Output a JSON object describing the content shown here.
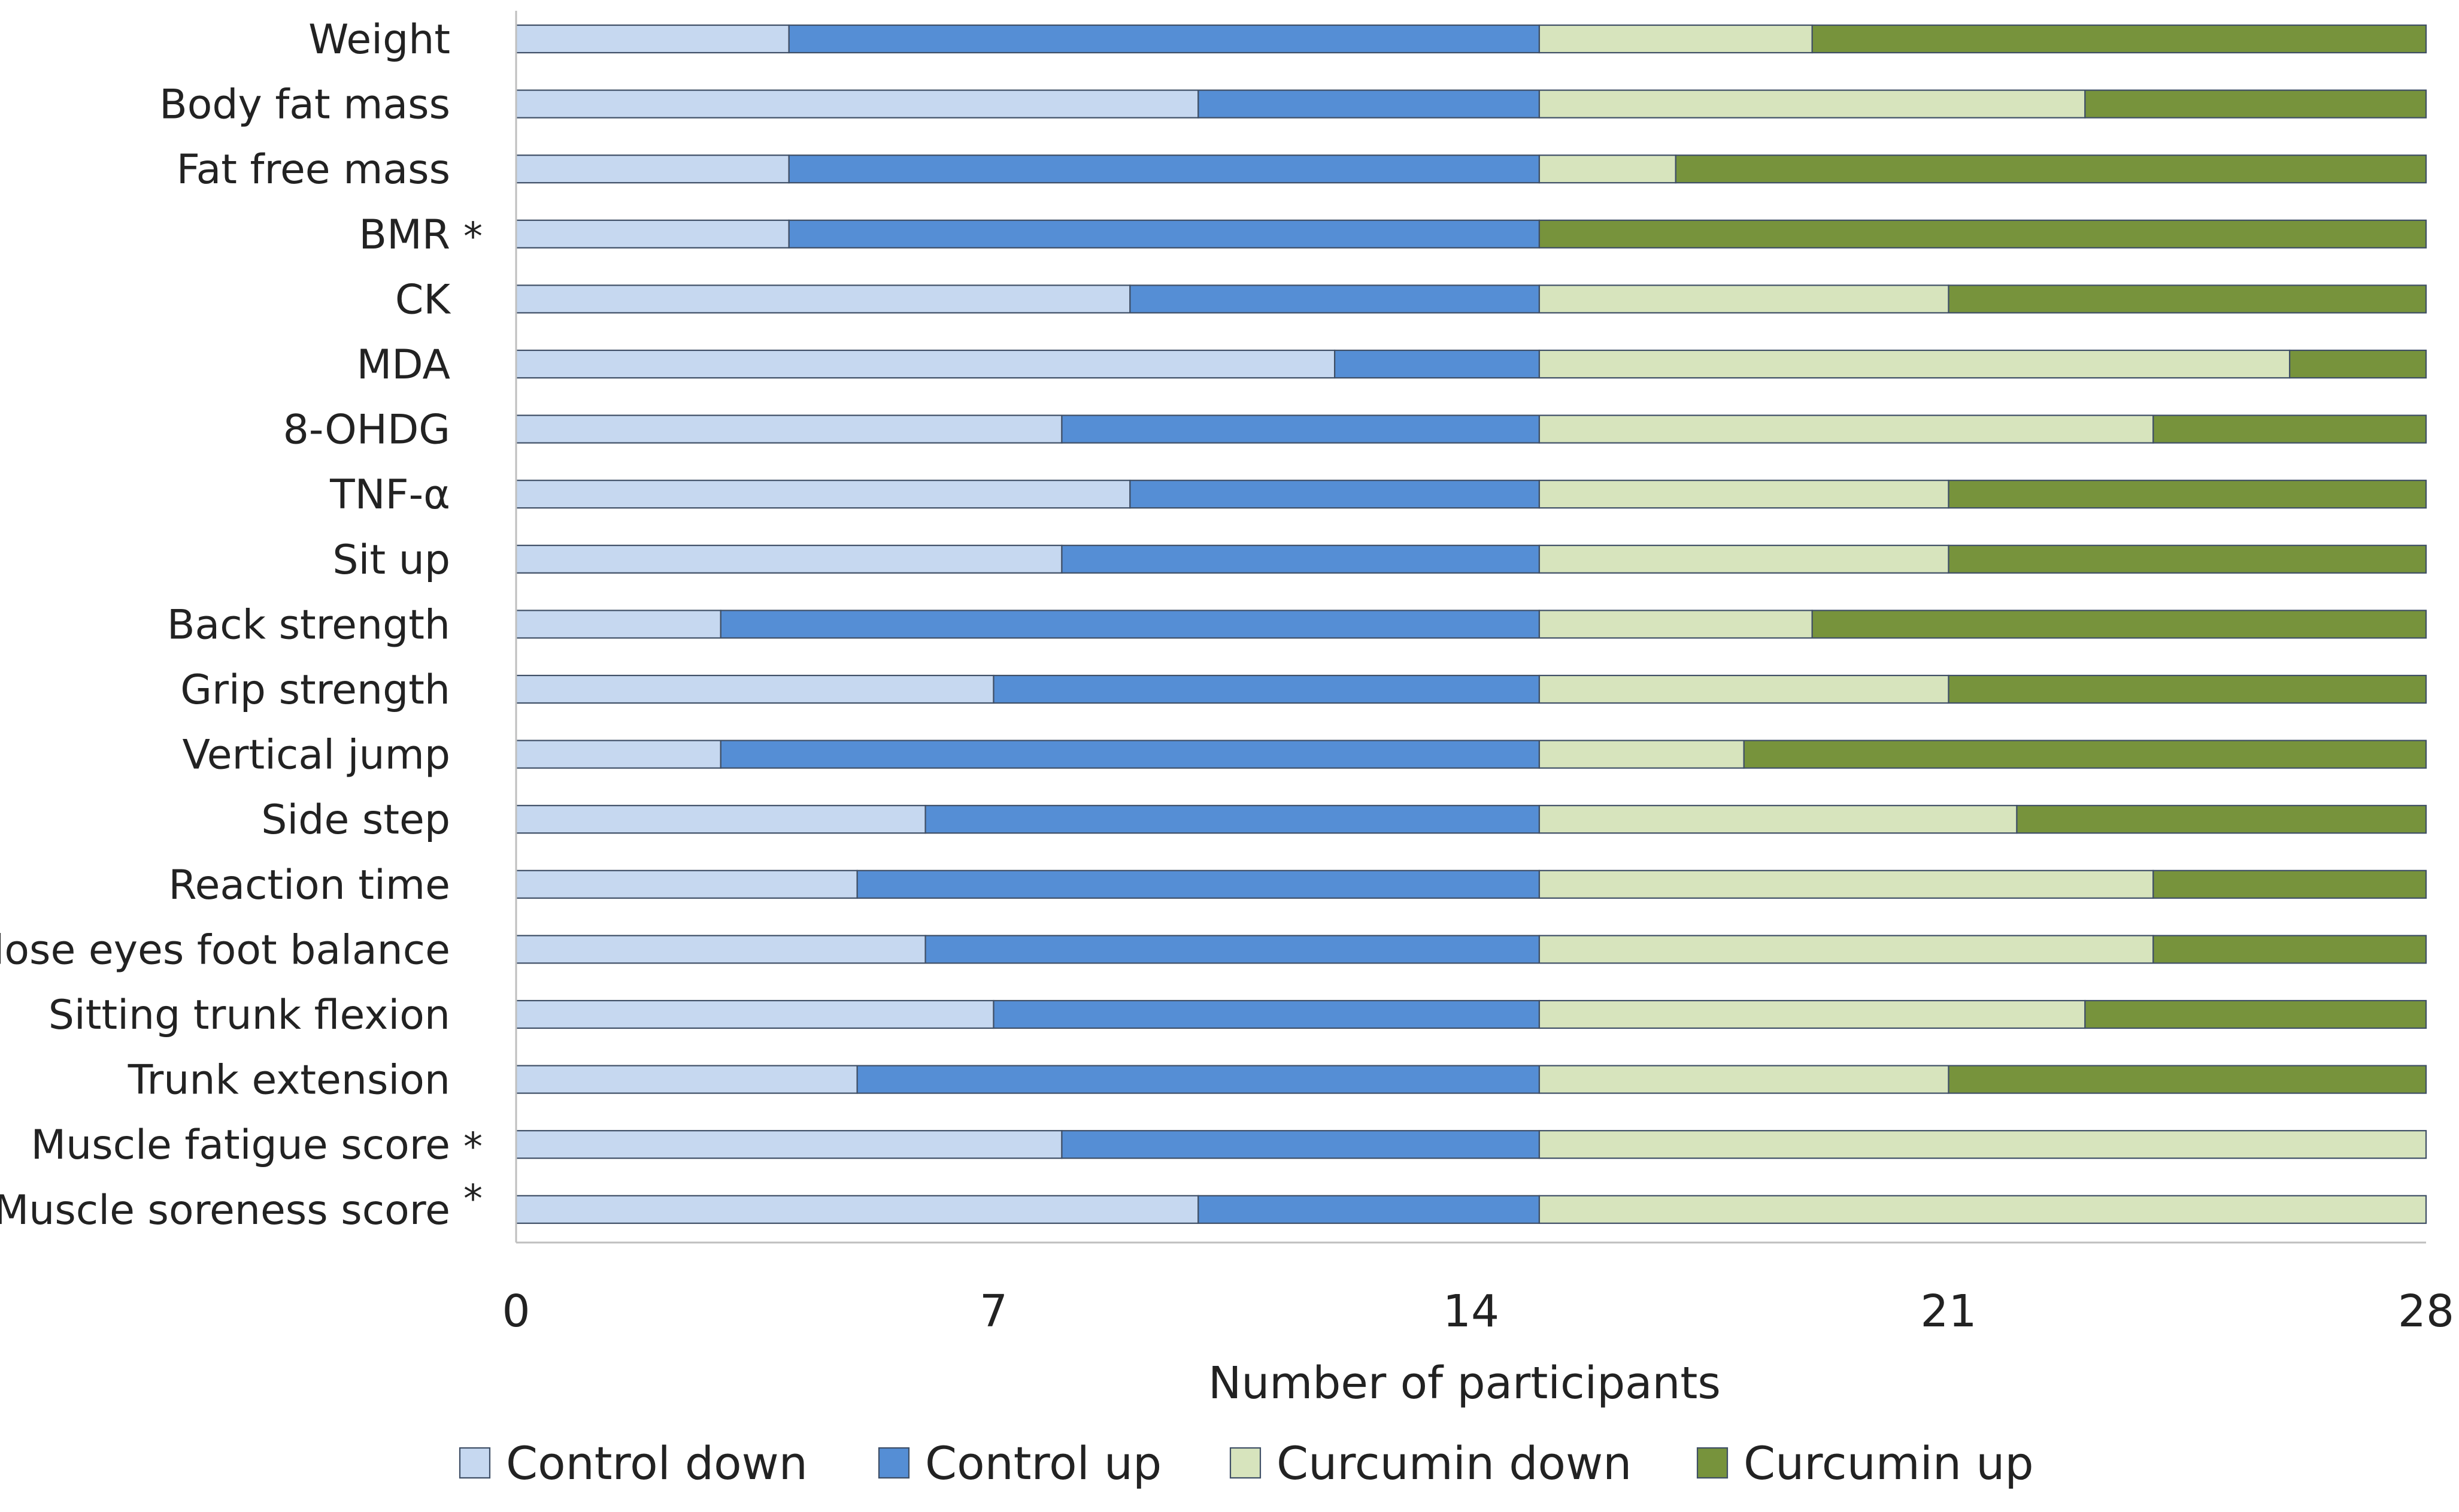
{
  "chart_data": {
    "type": "bar",
    "orientation": "horizontal",
    "stacked": true,
    "title": "",
    "xlabel": "Number of participants",
    "ylabel": "",
    "xlim": [
      0,
      28
    ],
    "xticks": [
      0,
      7,
      14,
      21,
      28
    ],
    "grid": false,
    "legend_position": "bottom",
    "categories": [
      "Weight",
      "Body fat mass",
      "Fat free mass",
      "BMR",
      "CK",
      "MDA",
      "8-OHDG",
      "TNF-α",
      "Sit up",
      "Back strength",
      "Grip strength",
      "Vertical jump",
      "Side step",
      "Reaction time",
      "Close eyes foot balance",
      "Sitting trunk flexion",
      "Trunk extension",
      "Muscle fatigue score",
      "Muscle soreness score"
    ],
    "significant_marker": "*",
    "significant": [
      false,
      false,
      false,
      true,
      false,
      false,
      false,
      false,
      false,
      false,
      false,
      false,
      false,
      false,
      false,
      false,
      false,
      true,
      true
    ],
    "series": [
      {
        "name": "Control down",
        "color": "#c6d8f0",
        "values": [
          4,
          10,
          4,
          4,
          9,
          12,
          8,
          9,
          8,
          3,
          7,
          3,
          6,
          5,
          6,
          7,
          5,
          8,
          10
        ]
      },
      {
        "name": "Control up",
        "color": "#558ed5",
        "values": [
          11,
          5,
          11,
          11,
          6,
          3,
          7,
          6,
          7,
          12,
          8,
          12,
          9,
          10,
          9,
          8,
          10,
          7,
          5
        ]
      },
      {
        "name": "Curcumin down",
        "color": "#d7e4bd",
        "values": [
          4,
          8,
          2,
          0,
          6,
          11,
          9,
          6,
          6,
          4,
          6,
          3,
          7,
          9,
          9,
          8,
          6,
          13,
          13
        ]
      },
      {
        "name": "Curcumin up",
        "color": "#77933c",
        "values": [
          9,
          5,
          11,
          13,
          7,
          2,
          4,
          7,
          7,
          9,
          7,
          10,
          6,
          4,
          4,
          5,
          7,
          0,
          0
        ]
      }
    ]
  }
}
